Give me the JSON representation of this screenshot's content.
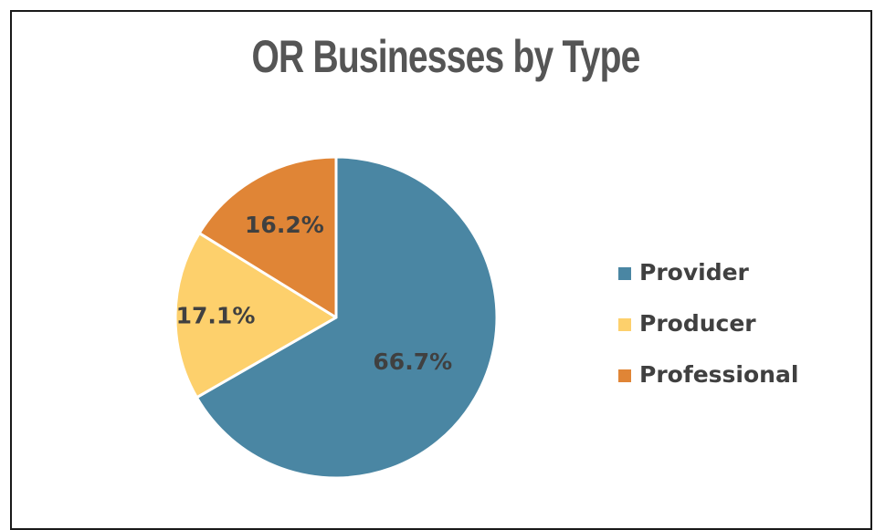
{
  "chart_data": {
    "type": "pie",
    "title": "OR Businesses by Type",
    "categories": [
      "Provider",
      "Producer",
      "Professional"
    ],
    "values": [
      66.7,
      17.1,
      16.2
    ],
    "data_labels": [
      "66.7%",
      "17.1%",
      "16.2%"
    ],
    "colors": [
      "#4a86a3",
      "#fdd06c",
      "#e08536"
    ],
    "legend_position": "right"
  }
}
